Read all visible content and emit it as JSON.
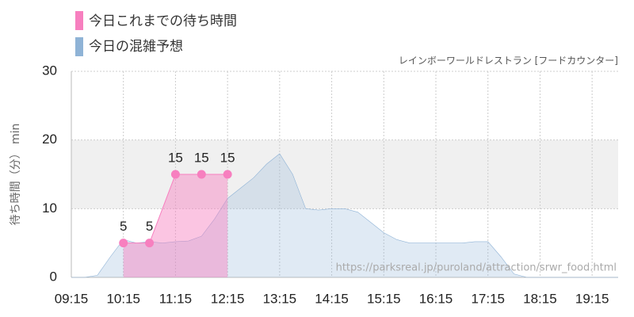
{
  "chart_data": {
    "type": "area",
    "subtitle": "レインボーワールドレストラン [フードカウンター]",
    "y_label": "待ち時間（分） min",
    "annotation": "https://parksreal.jp/puroland/attraction/srwr_food.html",
    "xlim": [
      "09:15",
      "19:45"
    ],
    "xticks": [
      "09:15",
      "10:15",
      "11:15",
      "12:15",
      "13:15",
      "14:15",
      "15:15",
      "16:15",
      "17:15",
      "18:15",
      "19:15"
    ],
    "ylim": [
      0,
      30
    ],
    "yticks": [
      0,
      10,
      20,
      30
    ],
    "grid": true,
    "series": [
      {
        "name": "今日の混雑予想",
        "color": "#8fb3d6",
        "x": [
          "09:15",
          "09:30",
          "09:45",
          "10:00",
          "10:15",
          "10:30",
          "10:45",
          "11:00",
          "11:15",
          "11:30",
          "11:45",
          "12:00",
          "12:15",
          "12:30",
          "12:45",
          "13:00",
          "13:15",
          "13:30",
          "13:45",
          "14:00",
          "14:15",
          "14:30",
          "14:45",
          "15:00",
          "15:15",
          "15:30",
          "15:45",
          "16:00",
          "16:15",
          "16:30",
          "16:45",
          "17:00",
          "17:15",
          "17:30",
          "17:45",
          "18:00",
          "18:15",
          "18:30",
          "18:45",
          "19:00",
          "19:15",
          "19:30",
          "19:45"
        ],
        "values": [
          0,
          0,
          0.3,
          3,
          5.5,
          5,
          5.2,
          5,
          5.2,
          5.3,
          6,
          8.5,
          11.5,
          13,
          14.5,
          16.5,
          18,
          15,
          10,
          9.8,
          10,
          10,
          9.5,
          8,
          6.5,
          5.5,
          5,
          5,
          5,
          5,
          5,
          5.2,
          5.2,
          3,
          0.5,
          0,
          0,
          0,
          0,
          0,
          0,
          0,
          0
        ]
      },
      {
        "name": "今日これまでの待ち時間",
        "color": "#f77fbf",
        "x": [
          "10:15",
          "10:45",
          "11:15",
          "11:45",
          "12:15"
        ],
        "values": [
          5,
          5,
          15,
          15,
          15
        ]
      }
    ]
  }
}
